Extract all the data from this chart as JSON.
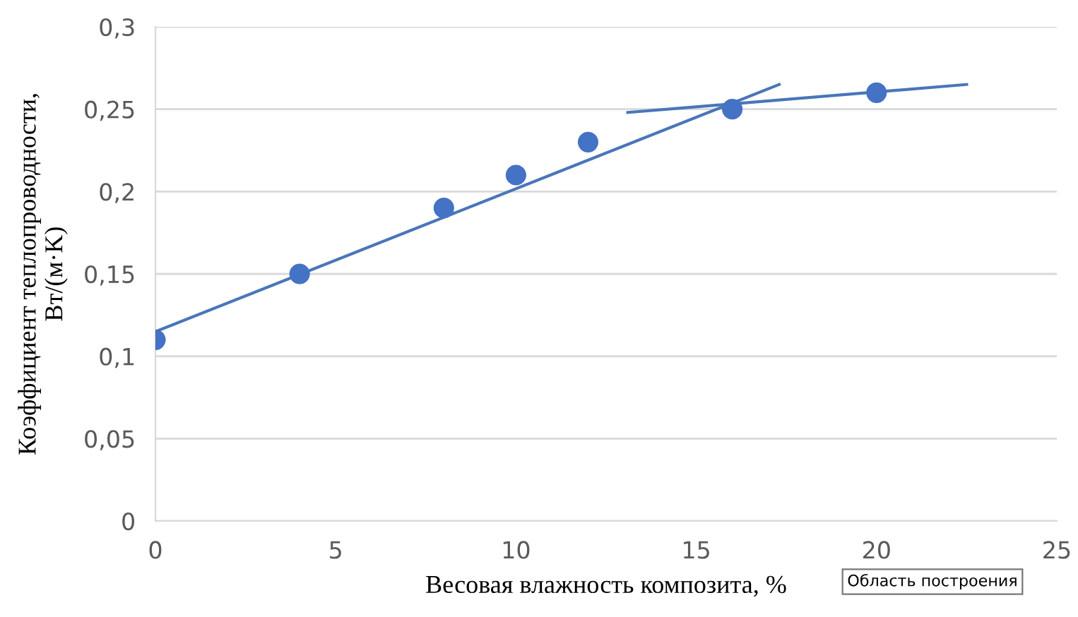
{
  "chart_data": {
    "type": "scatter",
    "xlabel": "Весовая влажность композита, %",
    "ylabel": "Коэффициент теплопроводности,\nВт/(м·K)",
    "xlim": [
      0,
      25
    ],
    "xticks": [
      0,
      5,
      10,
      15,
      20,
      25
    ],
    "ylim": [
      0,
      0.3
    ],
    "yticks": [
      {
        "value": 0,
        "label": "0"
      },
      {
        "value": 0.05,
        "label": "0,05"
      },
      {
        "value": 0.1,
        "label": "0,1"
      },
      {
        "value": 0.15,
        "label": "0,15"
      },
      {
        "value": 0.2,
        "label": "0,2"
      },
      {
        "value": 0.25,
        "label": "0,25"
      },
      {
        "value": 0.3,
        "label": "0,3"
      }
    ],
    "grid": "y",
    "series": [
      {
        "color": "#4472c4",
        "marker": "circle",
        "x": [
          0,
          4,
          8,
          10,
          12,
          16,
          20
        ],
        "values": [
          0.11,
          0.15,
          0.19,
          0.21,
          0.23,
          0.25,
          0.26
        ]
      },
      {
        "type": "line",
        "marker": "none",
        "color": "#4a76b8",
        "x": [
          0,
          17.3
        ],
        "values": [
          0.115,
          0.265
        ]
      },
      {
        "type": "line",
        "marker": "none",
        "color": "#4a76b8",
        "x": [
          13.1,
          22.5
        ],
        "values": [
          0.248,
          0.265
        ]
      }
    ],
    "annotations": [
      "Область построения"
    ]
  }
}
